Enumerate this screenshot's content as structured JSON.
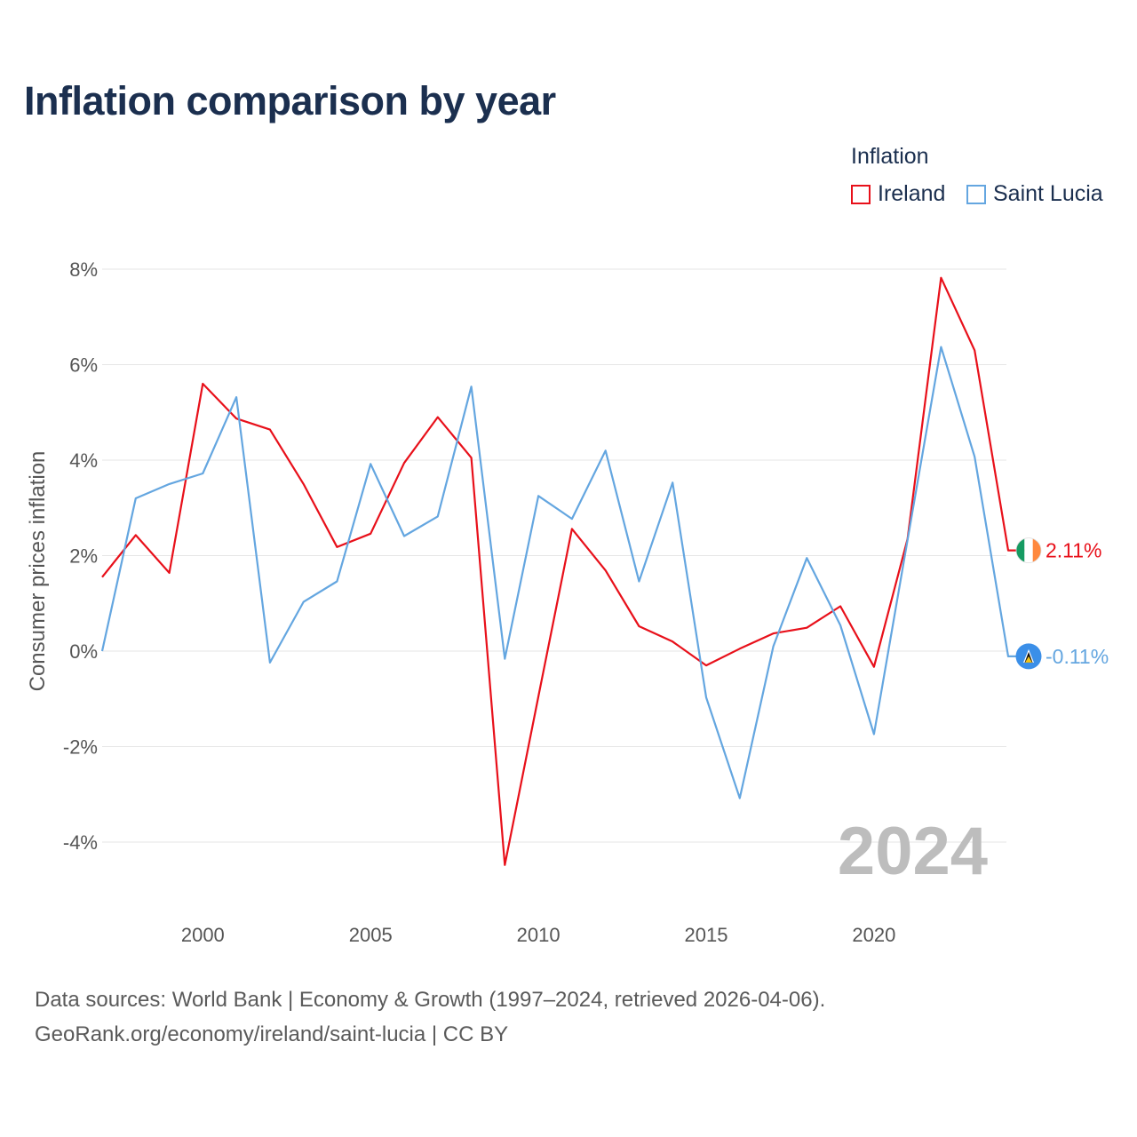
{
  "title": "Inflation comparison by year",
  "legend": {
    "title": "Inflation",
    "items": [
      {
        "label": "Ireland",
        "color": "#e8101a"
      },
      {
        "label": "Saint Lucia",
        "color": "#64a6e0"
      }
    ]
  },
  "source": {
    "line1": "Data sources: World Bank | Economy & Growth (1997–2024, retrieved 2026-04-06).",
    "line2": "GeoRank.org/economy/ireland/saint-lucia | CC BY"
  },
  "chart_data": {
    "type": "line",
    "title": "Inflation comparison by year",
    "xlabel": "",
    "ylabel": "Consumer prices inflation",
    "xlim": [
      1997,
      2024
    ],
    "ylim": [
      -5,
      8.5
    ],
    "x_ticks": [
      2000,
      2005,
      2010,
      2015,
      2020
    ],
    "y_ticks": [
      {
        "value": 8,
        "label": "8%"
      },
      {
        "value": 6,
        "label": "6%"
      },
      {
        "value": 4,
        "label": "4%"
      },
      {
        "value": 2,
        "label": "2%"
      },
      {
        "value": 0,
        "label": "0%"
      },
      {
        "value": -2,
        "label": "-2%"
      },
      {
        "value": -4,
        "label": "-4%"
      }
    ],
    "grid": true,
    "watermark_year": "2024",
    "x": [
      1997,
      1998,
      1999,
      2000,
      2001,
      2002,
      2003,
      2004,
      2005,
      2006,
      2007,
      2008,
      2009,
      2010,
      2011,
      2012,
      2013,
      2014,
      2015,
      2016,
      2017,
      2018,
      2019,
      2020,
      2021,
      2022,
      2023,
      2024
    ],
    "series": [
      {
        "name": "Ireland",
        "color": "#e8101a",
        "end_label": "2.11%",
        "flag": "ireland-flag",
        "values": [
          1.55,
          2.43,
          1.64,
          5.6,
          4.87,
          4.64,
          3.5,
          2.18,
          2.46,
          3.94,
          4.9,
          4.05,
          -4.48,
          -0.95,
          2.56,
          1.69,
          0.52,
          0.2,
          -0.3,
          0.05,
          0.37,
          0.49,
          0.94,
          -0.33,
          2.35,
          7.82,
          6.3,
          2.11
        ]
      },
      {
        "name": "Saint Lucia",
        "color": "#64a6e0",
        "end_label": "-0.11%",
        "flag": "saint-lucia-flag",
        "values": [
          0.0,
          3.2,
          3.5,
          3.72,
          5.32,
          -0.24,
          1.03,
          1.46,
          3.92,
          2.41,
          2.82,
          5.54,
          -0.16,
          3.25,
          2.77,
          4.2,
          1.46,
          3.53,
          -0.97,
          -3.08,
          0.1,
          1.95,
          0.54,
          -1.74,
          2.33,
          6.37,
          4.07,
          -0.11
        ]
      }
    ]
  }
}
